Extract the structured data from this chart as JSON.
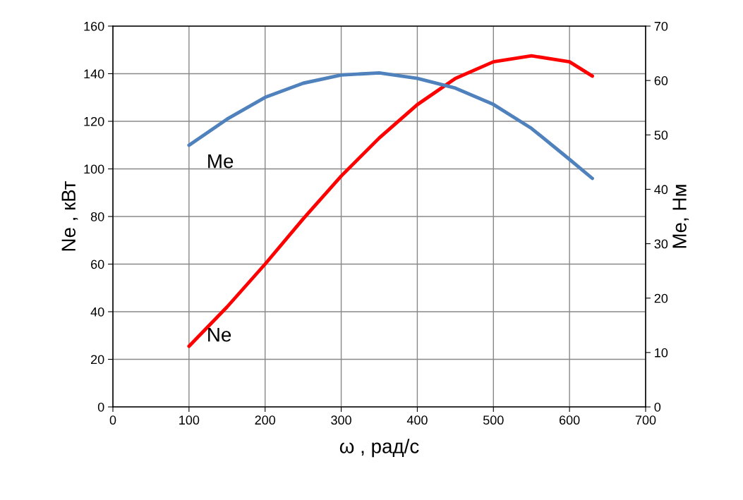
{
  "chart_data": {
    "type": "line",
    "xlabel": "ω , рад/с",
    "ylabel": "Ne , кВт",
    "y2label": "Me, Нм",
    "xlim": [
      0,
      700
    ],
    "xticks": [
      0,
      100,
      200,
      300,
      400,
      500,
      600,
      700
    ],
    "ylim": [
      0,
      160
    ],
    "yticks": [
      0,
      20,
      40,
      60,
      80,
      100,
      120,
      140,
      160
    ],
    "y2lim": [
      0,
      70
    ],
    "y2ticks": [
      0,
      10,
      20,
      30,
      40,
      50,
      60,
      70
    ],
    "grid": true,
    "marker": "none",
    "line_style": "solid",
    "x": [
      100,
      150,
      200,
      250,
      300,
      350,
      400,
      450,
      500,
      550,
      600,
      630
    ],
    "series": [
      {
        "name": "Me",
        "color": "#4f81bd",
        "axis": "y2",
        "values": [
          48.1,
          52.9,
          56.9,
          59.5,
          61.0,
          61.4,
          60.4,
          58.6,
          55.6,
          51.2,
          45.5,
          42.0
        ]
      },
      {
        "name": "Ne",
        "color": "#ff0000",
        "values": [
          25.5,
          42,
          60,
          79,
          97,
          113,
          127,
          138,
          145,
          147.5,
          145,
          139
        ]
      }
    ]
  }
}
